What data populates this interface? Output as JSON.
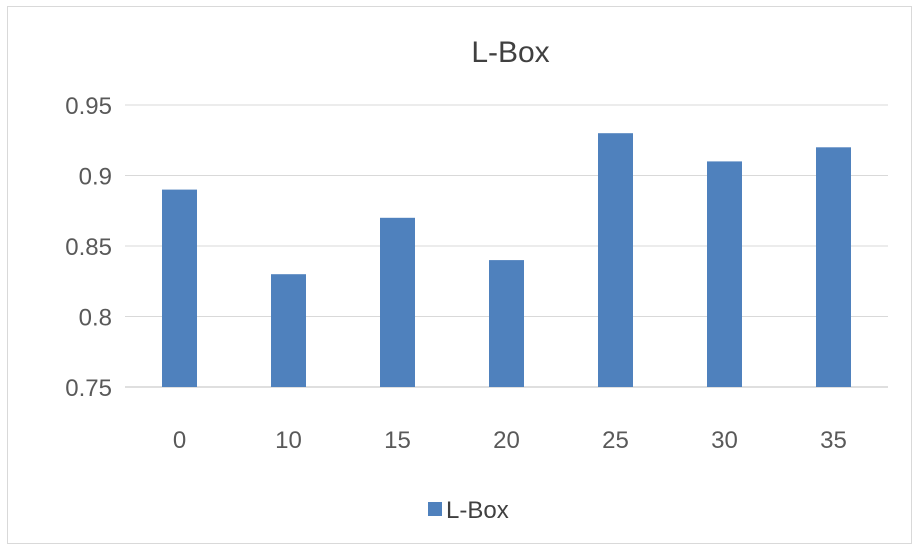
{
  "chart_data": {
    "type": "bar",
    "title": "L-Box",
    "categories": [
      "0",
      "10",
      "15",
      "20",
      "25",
      "30",
      "35"
    ],
    "series": [
      {
        "name": "L-Box",
        "values": [
          0.89,
          0.83,
          0.87,
          0.84,
          0.93,
          0.91,
          0.92
        ],
        "color": "#4f81bd"
      }
    ],
    "ylim": [
      0.75,
      0.95
    ],
    "yticks": [
      "0.75",
      "0.8",
      "0.85",
      "0.9",
      "0.95"
    ],
    "grid": true,
    "legend_position": "bottom"
  }
}
